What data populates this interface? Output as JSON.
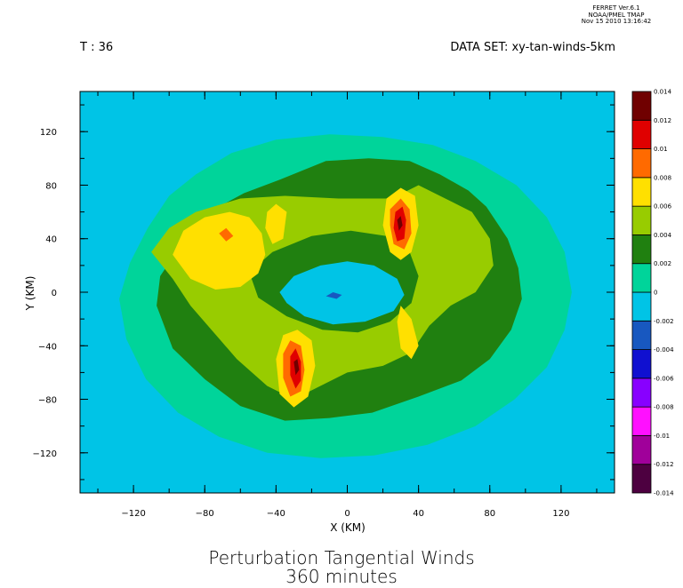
{
  "stamp": {
    "line1": "FERRET  Ver.6.1",
    "line2": "NOAA/PMEL TMAP",
    "line3": "Nov 15 2010 13:16:42"
  },
  "header": {
    "time": "T : 36",
    "dataset": "DATA SET: xy-tan-winds-5km"
  },
  "title": {
    "line1": "Perturbation Tangential Winds",
    "line2": "360 minutes"
  },
  "chart_data": {
    "type": "heatmap",
    "xlabel": "X (KM)",
    "ylabel": "Y (KM)",
    "xlim": [
      -150,
      150
    ],
    "ylim": [
      -150,
      150
    ],
    "xticks": [
      -120,
      -80,
      -40,
      0,
      40,
      80,
      120
    ],
    "yticks": [
      -120,
      -80,
      -40,
      0,
      40,
      80,
      120
    ],
    "colorbar": {
      "levels": [
        -0.014,
        -0.012,
        -0.01,
        -0.008,
        -0.006,
        -0.004,
        -0.002,
        0,
        0.002,
        0.004,
        0.006,
        0.008,
        0.01,
        0.012,
        0.014
      ],
      "labels": [
        "-0.014",
        "-0.012",
        "-0.01",
        "-0.008",
        "-0.006",
        "-0.004",
        "-0.002",
        "0",
        "0.002",
        "0.004",
        "0.006",
        "0.008",
        "0.01",
        "0.012",
        "0.014"
      ],
      "colors": [
        "#4d0040",
        "#a0009a",
        "#ff10ff",
        "#8800ff",
        "#1010d0",
        "#1858c0",
        "#00c4e6",
        "#00d49a",
        "#208010",
        "#98cc00",
        "#ffe000",
        "#ff6a00",
        "#e00000",
        "#700000"
      ]
    },
    "regions": [
      {
        "name": "background",
        "level": "-0.002 to 0",
        "color": "#00c4e6",
        "points": [
          [
            -150,
            -150
          ],
          [
            150,
            -150
          ],
          [
            150,
            150
          ],
          [
            -150,
            150
          ]
        ]
      },
      {
        "name": "outer-ring",
        "level": "0 to 0.002",
        "color": "#00d49a",
        "points": [
          [
            -128,
            -5
          ],
          [
            -122,
            22
          ],
          [
            -112,
            48
          ],
          [
            -100,
            72
          ],
          [
            -85,
            88
          ],
          [
            -65,
            104
          ],
          [
            -40,
            114
          ],
          [
            -10,
            118
          ],
          [
            20,
            116
          ],
          [
            48,
            110
          ],
          [
            72,
            98
          ],
          [
            95,
            80
          ],
          [
            112,
            56
          ],
          [
            122,
            30
          ],
          [
            126,
            0
          ],
          [
            122,
            -28
          ],
          [
            112,
            -56
          ],
          [
            94,
            -80
          ],
          [
            72,
            -100
          ],
          [
            45,
            -114
          ],
          [
            15,
            -122
          ],
          [
            -15,
            -124
          ],
          [
            -45,
            -120
          ],
          [
            -72,
            -108
          ],
          [
            -95,
            -90
          ],
          [
            -113,
            -65
          ],
          [
            -124,
            -35
          ]
        ]
      },
      {
        "name": "mid-ring",
        "level": "0.002 to 0.004",
        "color": "#208010",
        "points": [
          [
            -107,
            -10
          ],
          [
            -105,
            12
          ],
          [
            -95,
            32
          ],
          [
            -82,
            50
          ],
          [
            -72,
            64
          ],
          [
            -58,
            74
          ],
          [
            -38,
            84
          ],
          [
            -12,
            98
          ],
          [
            12,
            100
          ],
          [
            35,
            98
          ],
          [
            52,
            88
          ],
          [
            68,
            76
          ],
          [
            78,
            64
          ],
          [
            90,
            40
          ],
          [
            96,
            18
          ],
          [
            98,
            -5
          ],
          [
            92,
            -28
          ],
          [
            80,
            -50
          ],
          [
            64,
            -66
          ],
          [
            40,
            -78
          ],
          [
            14,
            -90
          ],
          [
            -10,
            -94
          ],
          [
            -35,
            -96
          ],
          [
            -60,
            -85
          ],
          [
            -80,
            -65
          ],
          [
            -98,
            -42
          ]
        ]
      },
      {
        "name": "mid-ring-hole",
        "level": "-0.002 to 0",
        "color": "#00c4e6",
        "points": [
          [
            -45,
            5
          ],
          [
            -38,
            22
          ],
          [
            -20,
            32
          ],
          [
            0,
            36
          ],
          [
            18,
            32
          ],
          [
            32,
            20
          ],
          [
            40,
            4
          ],
          [
            38,
            -12
          ],
          [
            26,
            -26
          ],
          [
            8,
            -32
          ],
          [
            -12,
            -30
          ],
          [
            -30,
            -22
          ],
          [
            -42,
            -10
          ]
        ]
      },
      {
        "name": "inner-ring",
        "level": "0.004 to 0.006",
        "color": "#98cc00",
        "points": [
          [
            -110,
            30
          ],
          [
            -100,
            48
          ],
          [
            -85,
            60
          ],
          [
            -60,
            70
          ],
          [
            -35,
            72
          ],
          [
            -5,
            70
          ],
          [
            25,
            70
          ],
          [
            40,
            80
          ],
          [
            55,
            70
          ],
          [
            70,
            60
          ],
          [
            80,
            40
          ],
          [
            82,
            20
          ],
          [
            72,
            0
          ],
          [
            58,
            -10
          ],
          [
            46,
            -25
          ],
          [
            36,
            -45
          ],
          [
            20,
            -55
          ],
          [
            0,
            -60
          ],
          [
            -30,
            -80
          ],
          [
            -45,
            -70
          ],
          [
            -62,
            -50
          ],
          [
            -75,
            -30
          ],
          [
            -88,
            -10
          ],
          [
            -98,
            10
          ]
        ]
      },
      {
        "name": "inner-hole",
        "level": "0.002 to 0.004",
        "color": "#208010",
        "points": [
          [
            -55,
            15
          ],
          [
            -42,
            30
          ],
          [
            -20,
            42
          ],
          [
            2,
            46
          ],
          [
            22,
            42
          ],
          [
            35,
            30
          ],
          [
            40,
            12
          ],
          [
            36,
            -8
          ],
          [
            24,
            -22
          ],
          [
            6,
            -30
          ],
          [
            -14,
            -28
          ],
          [
            -34,
            -18
          ],
          [
            -50,
            -4
          ]
        ]
      },
      {
        "name": "eye",
        "level": "-0.002 to 0",
        "color": "#00c4e6",
        "points": [
          [
            -38,
            0
          ],
          [
            -30,
            12
          ],
          [
            -15,
            20
          ],
          [
            0,
            23
          ],
          [
            15,
            20
          ],
          [
            28,
            10
          ],
          [
            32,
            -2
          ],
          [
            26,
            -14
          ],
          [
            10,
            -22
          ],
          [
            -8,
            -24
          ],
          [
            -24,
            -18
          ],
          [
            -34,
            -8
          ]
        ]
      },
      {
        "name": "yellow-west",
        "level": "0.006 to 0.008",
        "color": "#ffe000",
        "points": [
          [
            -98,
            28
          ],
          [
            -92,
            46
          ],
          [
            -80,
            56
          ],
          [
            -66,
            60
          ],
          [
            -55,
            56
          ],
          [
            -48,
            44
          ],
          [
            -46,
            28
          ],
          [
            -50,
            14
          ],
          [
            -60,
            4
          ],
          [
            -74,
            2
          ],
          [
            -88,
            10
          ]
        ]
      },
      {
        "name": "yellow-west-2",
        "level": "0.006 to 0.008",
        "color": "#ffe000",
        "points": [
          [
            -45,
            60
          ],
          [
            -40,
            66
          ],
          [
            -34,
            60
          ],
          [
            -36,
            40
          ],
          [
            -42,
            36
          ],
          [
            -46,
            48
          ]
        ]
      },
      {
        "name": "yellow-north",
        "level": "0.006 to 0.008",
        "color": "#ffe000",
        "points": [
          [
            22,
            70
          ],
          [
            30,
            78
          ],
          [
            38,
            72
          ],
          [
            40,
            50
          ],
          [
            36,
            30
          ],
          [
            30,
            24
          ],
          [
            24,
            30
          ],
          [
            20,
            50
          ]
        ]
      },
      {
        "name": "yellow-south",
        "level": "0.006 to 0.008",
        "color": "#ffe000",
        "points": [
          [
            -40,
            -50
          ],
          [
            -36,
            -32
          ],
          [
            -28,
            -28
          ],
          [
            -20,
            -36
          ],
          [
            -18,
            -55
          ],
          [
            -22,
            -78
          ],
          [
            -30,
            -86
          ],
          [
            -38,
            -76
          ]
        ]
      },
      {
        "name": "yellow-east",
        "level": "0.006 to 0.008",
        "color": "#ffe000",
        "points": [
          [
            30,
            -10
          ],
          [
            36,
            -20
          ],
          [
            40,
            -40
          ],
          [
            36,
            -50
          ],
          [
            30,
            -42
          ],
          [
            28,
            -22
          ]
        ]
      },
      {
        "name": "orange-north",
        "level": "0.008 to 0.01",
        "color": "#ff6a00",
        "points": [
          [
            24,
            62
          ],
          [
            30,
            70
          ],
          [
            35,
            62
          ],
          [
            36,
            44
          ],
          [
            32,
            32
          ],
          [
            26,
            36
          ],
          [
            24,
            50
          ]
        ]
      },
      {
        "name": "orange-south",
        "level": "0.008 to 0.01",
        "color": "#ff6a00",
        "points": [
          [
            -36,
            -46
          ],
          [
            -32,
            -36
          ],
          [
            -26,
            -40
          ],
          [
            -24,
            -58
          ],
          [
            -26,
            -74
          ],
          [
            -32,
            -78
          ],
          [
            -36,
            -64
          ]
        ]
      },
      {
        "name": "orange-west",
        "level": "0.008 to 0.01",
        "color": "#ff6a00",
        "points": [
          [
            -72,
            44
          ],
          [
            -68,
            48
          ],
          [
            -64,
            42
          ],
          [
            -68,
            38
          ]
        ]
      },
      {
        "name": "red-north",
        "level": "0.01 to 0.012",
        "color": "#e00000",
        "points": [
          [
            27,
            60
          ],
          [
            31,
            64
          ],
          [
            33,
            54
          ],
          [
            32,
            40
          ],
          [
            28,
            38
          ],
          [
            26,
            48
          ]
        ]
      },
      {
        "name": "red-south",
        "level": "0.01 to 0.012",
        "color": "#e00000",
        "points": [
          [
            -32,
            -48
          ],
          [
            -29,
            -42
          ],
          [
            -26,
            -52
          ],
          [
            -26,
            -66
          ],
          [
            -29,
            -72
          ],
          [
            -32,
            -62
          ]
        ]
      },
      {
        "name": "darkred-north",
        "level": "0.012 to 0.014",
        "color": "#700000",
        "points": [
          [
            28,
            54
          ],
          [
            30,
            57
          ],
          [
            31,
            50
          ],
          [
            29,
            46
          ]
        ]
      },
      {
        "name": "darkred-south",
        "level": "0.012 to 0.014",
        "color": "#700000",
        "points": [
          [
            -30,
            -52
          ],
          [
            -28,
            -50
          ],
          [
            -27,
            -58
          ],
          [
            -29,
            -62
          ]
        ]
      },
      {
        "name": "eye-core",
        "level": "-0.004 to -0.002",
        "color": "#1858c0",
        "points": [
          [
            -12,
            -3
          ],
          [
            -8,
            0
          ],
          [
            -3,
            -2
          ],
          [
            -6,
            -5
          ]
        ]
      }
    ]
  }
}
